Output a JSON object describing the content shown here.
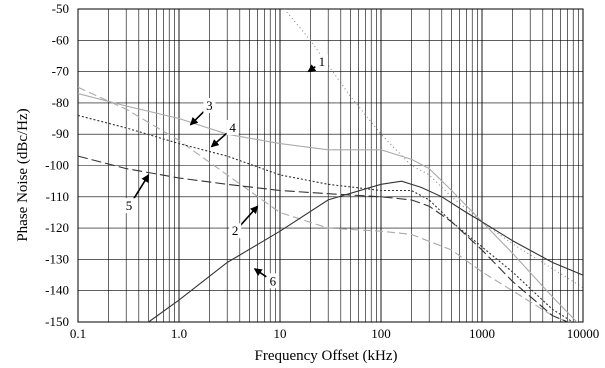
{
  "chart_data": {
    "type": "line",
    "title": "",
    "xlabel": "Frequency Offset (kHz)",
    "ylabel": "Phase Noise (dBc/Hz)",
    "xscale": "log",
    "xlim": [
      0.1,
      10000
    ],
    "ylim": [
      -150,
      -50
    ],
    "grid": true,
    "legend": "none",
    "x_ticks": [
      {
        "value": 0.1,
        "label": "0.1"
      },
      {
        "value": 1,
        "label": "1.0"
      },
      {
        "value": 10,
        "label": "10"
      },
      {
        "value": 100,
        "label": "100"
      },
      {
        "value": 1000,
        "label": "1000"
      },
      {
        "value": 10000,
        "label": "10000"
      }
    ],
    "y_ticks": [
      {
        "value": -50,
        "label": "-50"
      },
      {
        "value": -60,
        "label": "-60"
      },
      {
        "value": -70,
        "label": "-70"
      },
      {
        "value": -80,
        "label": "-80"
      },
      {
        "value": -90,
        "label": "-90"
      },
      {
        "value": -100,
        "label": "-100"
      },
      {
        "value": -110,
        "label": "-110"
      },
      {
        "value": -120,
        "label": "-120"
      },
      {
        "value": -130,
        "label": "-130"
      },
      {
        "value": -140,
        "label": "-140"
      },
      {
        "value": -150,
        "label": "-150"
      }
    ],
    "series": [
      {
        "id": "1",
        "color": "#888888",
        "dash": "1 3",
        "x": [
          11,
          20,
          50,
          100,
          200,
          300,
          500,
          1000,
          2000,
          5000,
          10000
        ],
        "y": [
          -50,
          -60,
          -78,
          -90,
          -100,
          -103,
          -110,
          -118,
          -125,
          -133,
          -139
        ]
      },
      {
        "id": "2",
        "color": "#aaaaaa",
        "dash": "8 4",
        "x": [
          0.1,
          0.3,
          1,
          3,
          10,
          30,
          100,
          200,
          500,
          1000,
          2000,
          5000,
          10000
        ],
        "y": [
          -75,
          -82,
          -92,
          -103,
          -115,
          -120,
          -121,
          -122,
          -127,
          -134,
          -140,
          -148,
          -152
        ]
      },
      {
        "id": "3",
        "color": "#aaaaaa",
        "dash": "",
        "x": [
          0.1,
          0.3,
          1,
          3,
          10,
          30,
          100,
          200,
          300,
          500,
          1000,
          2000,
          5000,
          10000
        ],
        "y": [
          -77,
          -81,
          -85,
          -90,
          -93,
          -95,
          -95,
          -98,
          -101,
          -108,
          -118,
          -128,
          -142,
          -152
        ]
      },
      {
        "id": "4",
        "color": "#333333",
        "dash": "2 2",
        "x": [
          0.1,
          0.3,
          1,
          3,
          10,
          30,
          100,
          200,
          300,
          500,
          1000,
          2000,
          5000,
          10000
        ],
        "y": [
          -84,
          -88,
          -93,
          -97,
          -103,
          -106,
          -108,
          -108,
          -111,
          -118,
          -126,
          -134,
          -146,
          -152
        ]
      },
      {
        "id": "5",
        "color": "#333333",
        "dash": "10 4",
        "x": [
          0.1,
          0.3,
          1,
          3,
          10,
          30,
          100,
          200,
          300,
          500,
          1000,
          2000,
          5000,
          10000
        ],
        "y": [
          -97,
          -101,
          -104,
          -106,
          -108,
          -109,
          -110,
          -111,
          -113,
          -118,
          -127,
          -137,
          -148,
          -152
        ]
      },
      {
        "id": "6",
        "color": "#333333",
        "dash": "",
        "x": [
          0.5,
          1,
          3,
          10,
          30,
          100,
          160,
          250,
          400,
          700,
          1000,
          2000,
          5000,
          10000
        ],
        "y": [
          -150,
          -143,
          -131,
          -121,
          -111,
          -106,
          -105,
          -107,
          -110,
          -115,
          -118,
          -124,
          -131,
          -135
        ]
      }
    ],
    "annotations": [
      {
        "label": "1",
        "text_x": 26,
        "text_y": -67,
        "arrow_to_x": 19,
        "arrow_to_y": -70
      },
      {
        "label": "3",
        "text_x": 2.0,
        "text_y": -81,
        "arrow_to_x": 1.3,
        "arrow_to_y": -87
      },
      {
        "label": "4",
        "text_x": 3.4,
        "text_y": -88,
        "arrow_to_x": 2.1,
        "arrow_to_y": -94
      },
      {
        "label": "5",
        "text_x": 0.32,
        "text_y": -113,
        "arrow_to_x": 0.5,
        "arrow_to_y": -103
      },
      {
        "label": "2",
        "text_x": 3.6,
        "text_y": -121,
        "arrow_to_x": 6.0,
        "arrow_to_y": -113
      },
      {
        "label": "6",
        "text_x": 8.5,
        "text_y": -137,
        "arrow_to_x": 5.6,
        "arrow_to_y": -133
      }
    ]
  }
}
